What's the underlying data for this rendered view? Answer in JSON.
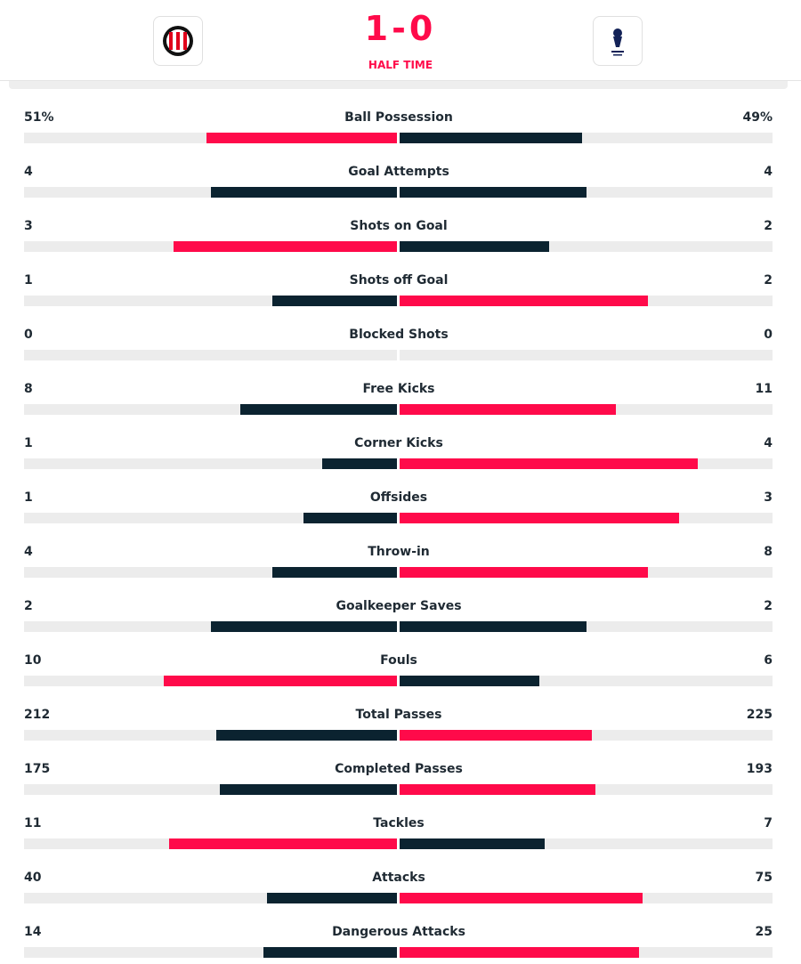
{
  "header": {
    "score": "1-0",
    "status": "HALF TIME"
  },
  "stats": [
    {
      "name": "Ball Possession",
      "home": 51,
      "away": 49,
      "home_label": "51%",
      "away_label": "49%"
    },
    {
      "name": "Goal Attempts",
      "home": 4,
      "away": 4
    },
    {
      "name": "Shots on Goal",
      "home": 3,
      "away": 2
    },
    {
      "name": "Shots off Goal",
      "home": 1,
      "away": 2
    },
    {
      "name": "Blocked Shots",
      "home": 0,
      "away": 0
    },
    {
      "name": "Free Kicks",
      "home": 8,
      "away": 11
    },
    {
      "name": "Corner Kicks",
      "home": 1,
      "away": 4
    },
    {
      "name": "Offsides",
      "home": 1,
      "away": 3
    },
    {
      "name": "Throw-in",
      "home": 4,
      "away": 8
    },
    {
      "name": "Goalkeeper Saves",
      "home": 2,
      "away": 2
    },
    {
      "name": "Fouls",
      "home": 10,
      "away": 6
    },
    {
      "name": "Total Passes",
      "home": 212,
      "away": 225
    },
    {
      "name": "Completed Passes",
      "home": 175,
      "away": 193
    },
    {
      "name": "Tackles",
      "home": 11,
      "away": 7
    },
    {
      "name": "Attacks",
      "home": 40,
      "away": 75
    },
    {
      "name": "Dangerous Attacks",
      "home": 14,
      "away": 25
    }
  ]
}
